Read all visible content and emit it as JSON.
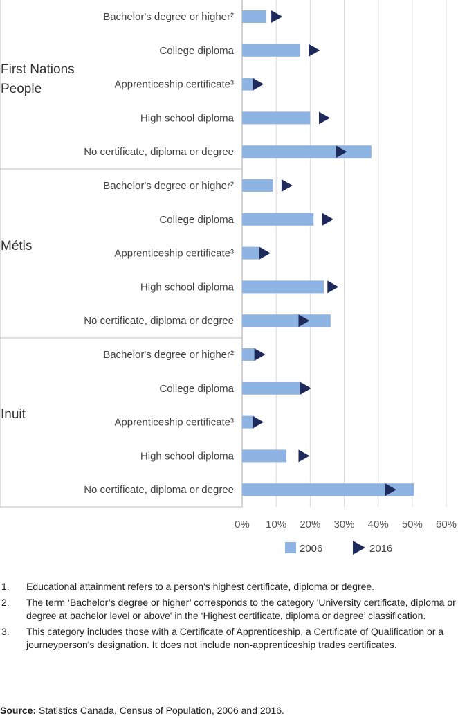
{
  "chart_data": {
    "type": "bar",
    "groups": [
      {
        "name": "First Nations People",
        "categories": [
          "Bachelor's degree or higher²",
          "College diploma",
          "Apprenticeship certificate³",
          "High school diploma",
          "No certificate, diploma or degree"
        ],
        "series": [
          {
            "name": "2006",
            "values": [
              7,
              17,
              3.5,
              20,
              38
            ]
          },
          {
            "name": "2016",
            "values": [
              10,
              21,
              4.5,
              24,
              29
            ]
          }
        ]
      },
      {
        "name": "Métis",
        "categories": [
          "Bachelor's degree or higher²",
          "College diploma",
          "Apprenticeship certificate³",
          "High school diploma",
          "No certificate, diploma or degree"
        ],
        "series": [
          {
            "name": "2006",
            "values": [
              9,
              21,
              5,
              24,
              26
            ]
          },
          {
            "name": "2016",
            "values": [
              13,
              25,
              6.5,
              26.5,
              18
            ]
          }
        ]
      },
      {
        "name": "Inuit",
        "categories": [
          "Bachelor's degree or higher²",
          "College diploma",
          "Apprenticeship certificate³",
          "High school diploma",
          "No certificate, diploma or degree"
        ],
        "series": [
          {
            "name": "2006",
            "values": [
              4,
              17,
              3.5,
              13,
              50.5
            ]
          },
          {
            "name": "2016",
            "values": [
              5,
              18.5,
              4.5,
              18,
              43.5
            ]
          }
        ]
      }
    ],
    "xlim": [
      0,
      60
    ],
    "x_ticks": [
      "0%",
      "10%",
      "20%",
      "30%",
      "40%",
      "50%",
      "60%"
    ],
    "grid": true,
    "legend": {
      "placement": "bottom",
      "entries": [
        "2006",
        "2016"
      ]
    },
    "colors": {
      "2006": "#8eb4e3",
      "2016": "#1f2a5c"
    }
  },
  "notes": [
    {
      "num": "1.",
      "text": "Educational attainment refers to a person's highest certificate, diploma or degree."
    },
    {
      "num": "2.",
      "text": "The term ‘Bachelor’s degree or higher’ corresponds to the category 'University certificate, diploma or degree at bachelor level or above' in the ‘Highest certificate, diploma or degree’ classification."
    },
    {
      "num": "3.",
      "text": "This category includes those with a Certificate of Apprenticeship, a Certificate of Qualification or a journeyperson's designation. It does not include non-apprenticeship trades certificates."
    }
  ],
  "source": {
    "label": "Source:",
    "text": " Statistics Canada, Census of Population, 2006 and 2016."
  }
}
